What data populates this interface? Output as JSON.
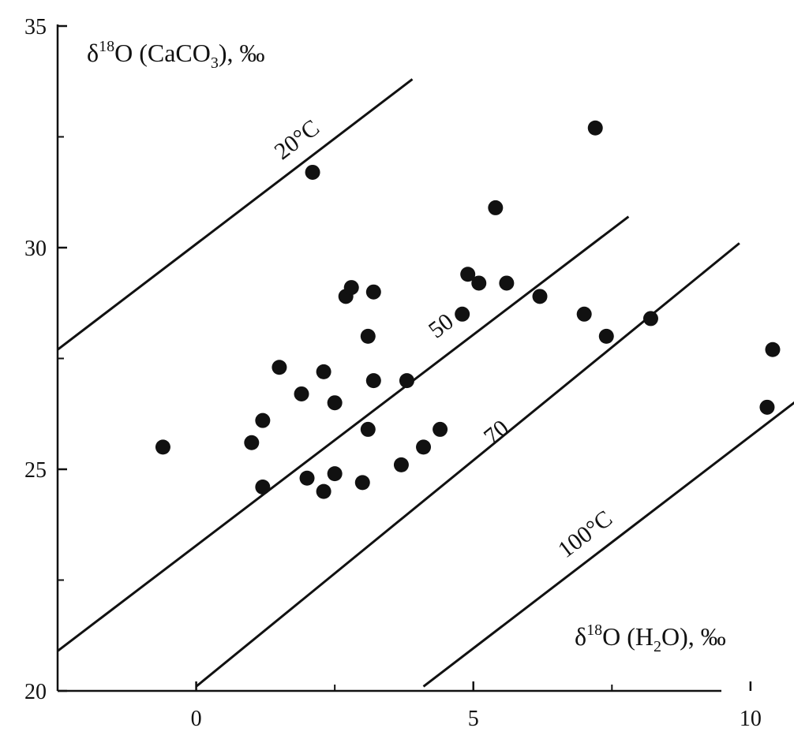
{
  "chart_data": {
    "type": "scatter",
    "xlim": [
      -2.5,
      10.5
    ],
    "ylim": [
      20,
      35
    ],
    "x_ticks": [
      0,
      5,
      10
    ],
    "y_ticks": [
      20,
      25,
      30,
      35
    ],
    "x_tick_labels": [
      "0",
      "5",
      "10"
    ],
    "y_tick_labels": [
      "20",
      "25",
      "30",
      "35"
    ],
    "x_minor_ticks": [
      2.5,
      7.5
    ],
    "y_minor_ticks": [
      22.5,
      27.5,
      32.5
    ],
    "ylabel": {
      "main": "δ",
      "sup": "18",
      "mid": "O (CaCO",
      "sub": "3",
      "end": "), ‰"
    },
    "xlabel": {
      "main": "δ",
      "sup": "18",
      "mid": "O (H",
      "sub": "2",
      "end": "O), ‰"
    },
    "grid": false,
    "points": [
      {
        "x": -0.6,
        "y": 25.5
      },
      {
        "x": 1.0,
        "y": 25.6
      },
      {
        "x": 1.2,
        "y": 26.1
      },
      {
        "x": 1.2,
        "y": 24.6
      },
      {
        "x": 1.5,
        "y": 27.3
      },
      {
        "x": 1.9,
        "y": 26.7
      },
      {
        "x": 2.0,
        "y": 24.8
      },
      {
        "x": 2.1,
        "y": 31.7
      },
      {
        "x": 2.3,
        "y": 27.2
      },
      {
        "x": 2.3,
        "y": 24.5
      },
      {
        "x": 2.5,
        "y": 26.5
      },
      {
        "x": 2.5,
        "y": 24.9
      },
      {
        "x": 2.7,
        "y": 28.9
      },
      {
        "x": 2.8,
        "y": 29.1
      },
      {
        "x": 3.0,
        "y": 24.7
      },
      {
        "x": 3.1,
        "y": 28.0
      },
      {
        "x": 3.1,
        "y": 25.9
      },
      {
        "x": 3.2,
        "y": 29.0
      },
      {
        "x": 3.2,
        "y": 27.0
      },
      {
        "x": 3.7,
        "y": 25.1
      },
      {
        "x": 3.8,
        "y": 27.0
      },
      {
        "x": 4.1,
        "y": 25.5
      },
      {
        "x": 4.4,
        "y": 25.9
      },
      {
        "x": 4.8,
        "y": 28.5
      },
      {
        "x": 4.9,
        "y": 29.4
      },
      {
        "x": 5.1,
        "y": 29.2
      },
      {
        "x": 5.4,
        "y": 30.9
      },
      {
        "x": 5.6,
        "y": 29.2
      },
      {
        "x": 6.2,
        "y": 28.9
      },
      {
        "x": 7.0,
        "y": 28.5
      },
      {
        "x": 7.2,
        "y": 32.7
      },
      {
        "x": 7.4,
        "y": 28.0
      },
      {
        "x": 8.2,
        "y": 28.4
      },
      {
        "x": 10.3,
        "y": 26.4
      },
      {
        "x": 10.4,
        "y": 27.7
      }
    ],
    "isotherms": [
      {
        "label": "20°C",
        "start": [
          -2.5,
          27.7
        ],
        "end": [
          3.9,
          33.8
        ],
        "label_at": [
          1.9,
          32.3
        ]
      },
      {
        "label": "50",
        "start": [
          -2.5,
          20.9
        ],
        "end": [
          7.8,
          30.7
        ],
        "label_at": [
          4.5,
          28.1
        ]
      },
      {
        "label": "70",
        "start": [
          0.0,
          20.1
        ],
        "end": [
          9.8,
          30.1
        ],
        "label_at": [
          5.5,
          25.7
        ]
      },
      {
        "label": "100°C",
        "start": [
          4.1,
          20.1
        ],
        "end": [
          11.1,
          26.8
        ],
        "label_at": [
          7.1,
          23.4
        ]
      }
    ]
  }
}
